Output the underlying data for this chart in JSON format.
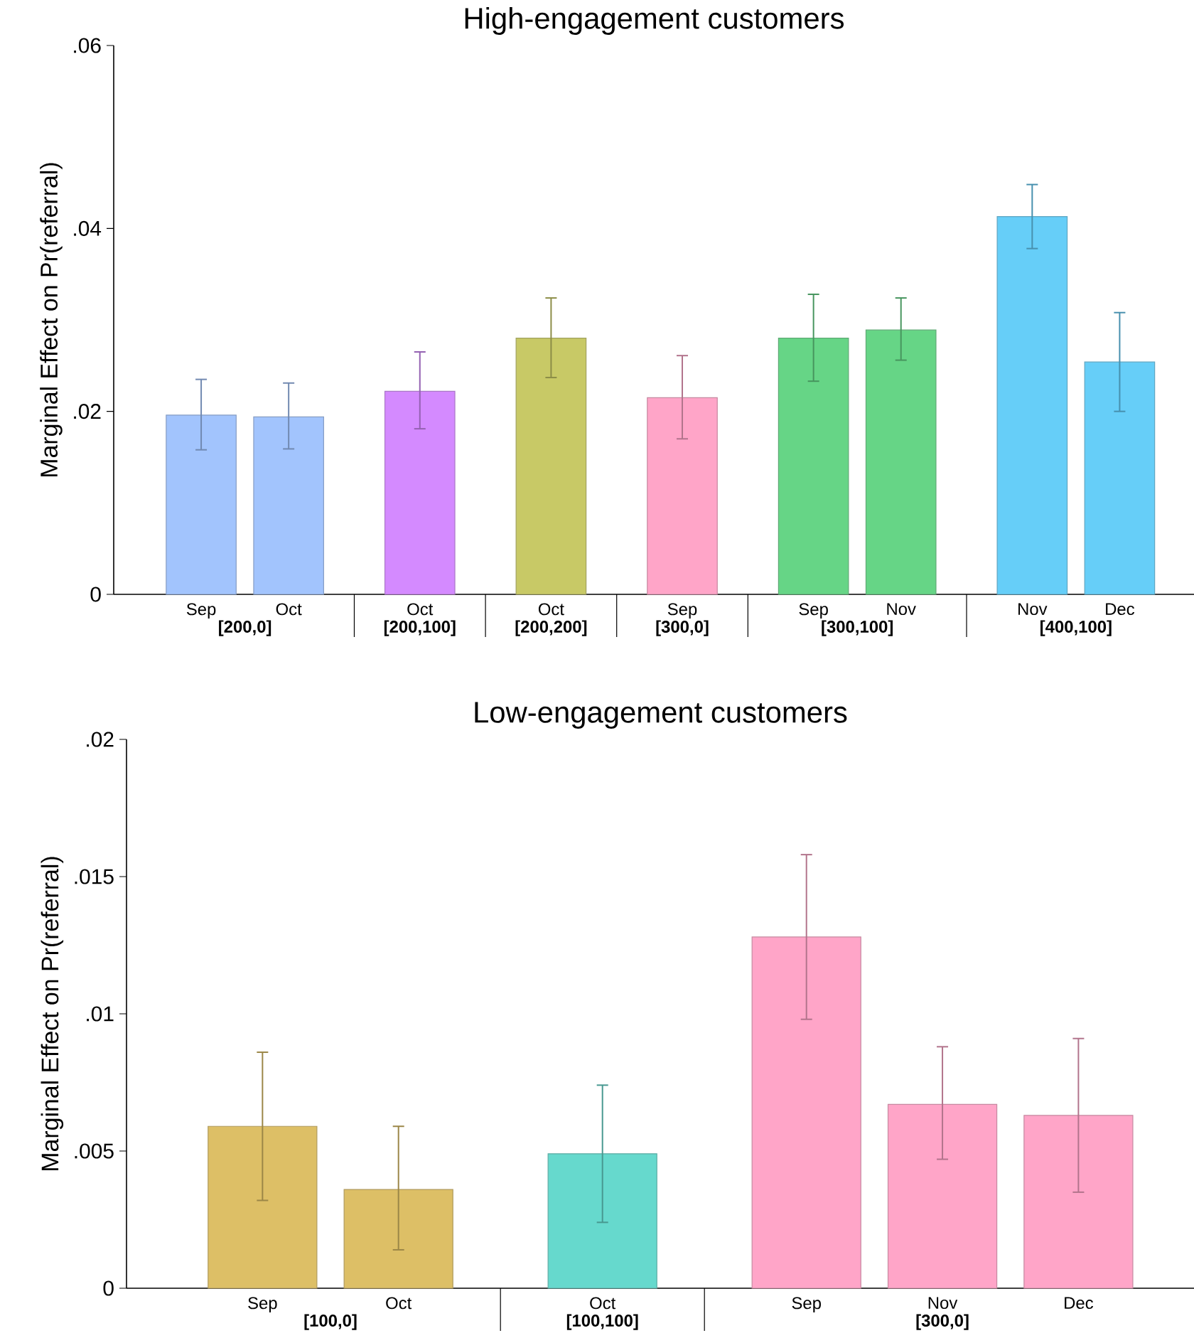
{
  "chart_data": [
    {
      "type": "bar",
      "title": "High-engagement customers",
      "ylabel": "Marginal Effect on Pr(referral)",
      "categories": [
        "Sep",
        "Oct",
        "Oct",
        "Oct",
        "Sep",
        "Sep",
        "Nov",
        "Nov",
        "Dec"
      ],
      "values": [
        0.0196,
        0.0194,
        0.0222,
        0.028,
        0.0215,
        0.028,
        0.0289,
        0.0413,
        0.0254
      ],
      "colors": [
        "#a2c4fd",
        "#a2c4fd",
        "#d48aff",
        "#c8c966",
        "#ffa5c8",
        "#66d586",
        "#66d586",
        "#66cef8",
        "#66cef8"
      ],
      "errors": [
        [
          0.0158,
          0.0235
        ],
        [
          0.0159,
          0.0231
        ],
        [
          0.0181,
          0.0265
        ],
        [
          0.0237,
          0.0324
        ],
        [
          0.017,
          0.0261
        ],
        [
          0.0233,
          0.0328
        ],
        [
          0.0256,
          0.0324
        ],
        [
          0.0378,
          0.0448
        ],
        [
          0.02,
          0.0308
        ]
      ],
      "annotations": [
        "[200,0]",
        "[200,100]",
        "[200,200]",
        "[300,0]",
        "[300,100]",
        "[400,100]"
      ],
      "ylim": [
        0,
        0.06
      ],
      "yticks": [
        0,
        {
          "value": 0.02,
          "label": ".02"
        },
        {
          "value": 0.04,
          "label": ".04"
        },
        {
          "value": 0.06,
          "label": ".06"
        }
      ]
    },
    {
      "type": "bar",
      "title": "Low-engagement customers",
      "ylabel": "Marginal Effect on Pr(referral)",
      "categories": [
        "Sep",
        "Oct",
        "Oct",
        "Sep",
        "Nov",
        "Dec"
      ],
      "values": [
        0.0059,
        0.0036,
        0.0049,
        0.0128,
        0.0067,
        0.0063
      ],
      "colors": [
        "#ddbf66",
        "#ddbf66",
        "#66d9cd",
        "#ffa5c8",
        "#ffa5c8",
        "#ffa5c8"
      ],
      "errors": [
        [
          0.0032,
          0.0086
        ],
        [
          0.0014,
          0.0059
        ],
        [
          0.0024,
          0.0074
        ],
        [
          0.0098,
          0.0158
        ],
        [
          0.0047,
          0.0088
        ],
        [
          0.0035,
          0.0091
        ]
      ],
      "annotations": [
        "[100,0]",
        "[100,100]",
        "[300,0]"
      ],
      "ylim": [
        0,
        0.02
      ],
      "yticks": [
        0,
        {
          "value": 0.005,
          "label": ".005"
        },
        {
          "value": 0.01,
          "label": ".01"
        },
        {
          "value": 0.015,
          "label": ".015"
        },
        {
          "value": 0.02,
          "label": ".02"
        }
      ]
    }
  ]
}
